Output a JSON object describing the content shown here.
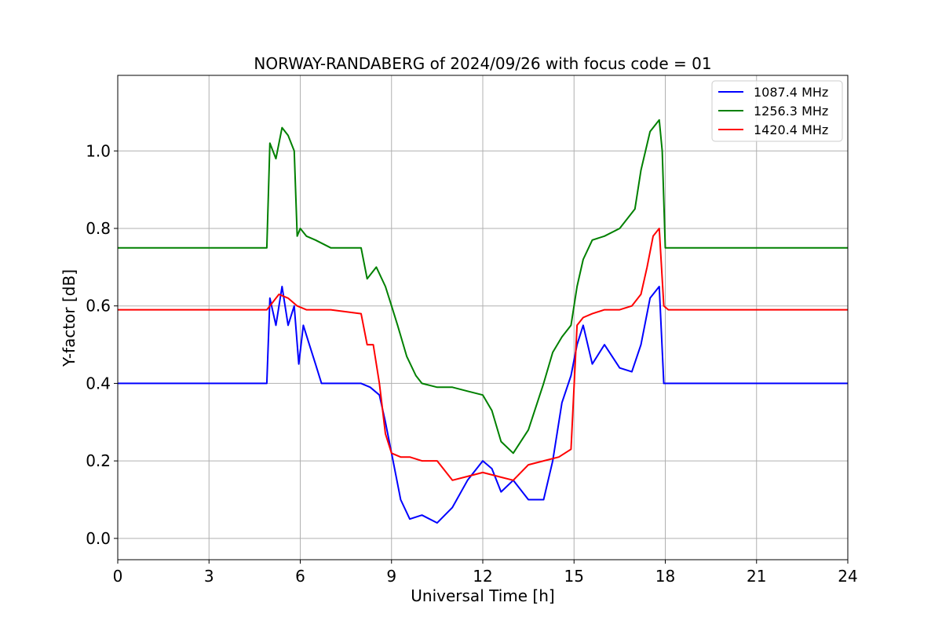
{
  "chart_data": {
    "type": "line",
    "title": "NORWAY-RANDABERG of 2024/09/26 with focus code = 01",
    "xlabel": "Universal Time [h]",
    "ylabel": "Y-factor [dB]",
    "xlim": [
      0,
      24
    ],
    "ylim": [
      -0.055,
      1.195
    ],
    "xticks": [
      0,
      3,
      6,
      9,
      12,
      15,
      18,
      21,
      24
    ],
    "xtick_labels": [
      "0",
      "3",
      "6",
      "9",
      "12",
      "15",
      "18",
      "21",
      "24"
    ],
    "yticks": [
      0.0,
      0.2,
      0.4,
      0.6,
      0.8,
      1.0
    ],
    "ytick_labels": [
      "0.0",
      "0.2",
      "0.4",
      "0.6",
      "0.8",
      "1.0"
    ],
    "grid": true,
    "legend_position": "top-right",
    "series": [
      {
        "name": "1087.4 MHz",
        "color": "#0000ff",
        "x": [
          0,
          4.9,
          5.0,
          5.2,
          5.4,
          5.6,
          5.8,
          5.95,
          6.1,
          6.3,
          6.5,
          6.7,
          7.0,
          8.0,
          8.3,
          8.6,
          8.8,
          9.0,
          9.3,
          9.6,
          10.0,
          10.5,
          11.0,
          11.5,
          12.0,
          12.3,
          12.6,
          13.0,
          13.5,
          14.0,
          14.3,
          14.6,
          14.9,
          15.1,
          15.3,
          15.6,
          16.0,
          16.5,
          16.9,
          17.2,
          17.5,
          17.8,
          17.95,
          18.1,
          19.0,
          20.0,
          20.6,
          21.0,
          22.0,
          24
        ],
        "y": [
          0.4,
          0.4,
          0.62,
          0.55,
          0.65,
          0.55,
          0.6,
          0.45,
          0.55,
          0.5,
          0.45,
          0.4,
          0.4,
          0.4,
          0.39,
          0.37,
          0.3,
          0.22,
          0.1,
          0.05,
          0.06,
          0.04,
          0.08,
          0.15,
          0.2,
          0.18,
          0.12,
          0.15,
          0.1,
          0.1,
          0.2,
          0.35,
          0.42,
          0.5,
          0.55,
          0.45,
          0.5,
          0.44,
          0.43,
          0.5,
          0.62,
          0.65,
          0.4,
          0.4,
          0.4,
          0.4,
          0.4,
          0.4,
          0.4,
          0.4
        ]
      },
      {
        "name": "1256.3 MHz",
        "color": "#008000",
        "x": [
          0,
          4.9,
          5.0,
          5.2,
          5.4,
          5.6,
          5.8,
          5.9,
          6.0,
          6.2,
          6.5,
          7.0,
          8.0,
          8.2,
          8.5,
          8.8,
          9.0,
          9.2,
          9.5,
          9.8,
          10.0,
          10.5,
          11.0,
          11.5,
          12.0,
          12.3,
          12.6,
          13.0,
          13.5,
          14.0,
          14.3,
          14.6,
          14.9,
          15.1,
          15.3,
          15.6,
          16.0,
          16.5,
          17.0,
          17.2,
          17.5,
          17.8,
          17.9,
          18.0,
          19.0,
          20.0,
          21.0,
          22.0,
          24
        ],
        "y": [
          0.75,
          0.75,
          1.02,
          0.98,
          1.06,
          1.04,
          1.0,
          0.78,
          0.8,
          0.78,
          0.77,
          0.75,
          0.75,
          0.67,
          0.7,
          0.65,
          0.6,
          0.55,
          0.47,
          0.42,
          0.4,
          0.39,
          0.39,
          0.38,
          0.37,
          0.33,
          0.25,
          0.22,
          0.28,
          0.4,
          0.48,
          0.52,
          0.55,
          0.65,
          0.72,
          0.77,
          0.78,
          0.8,
          0.85,
          0.95,
          1.05,
          1.08,
          1.0,
          0.75,
          0.75,
          0.75,
          0.75,
          0.75,
          0.75
        ]
      },
      {
        "name": "1420.4 MHz",
        "color": "#ff0000",
        "x": [
          0,
          4.9,
          5.0,
          5.3,
          5.6,
          5.9,
          6.2,
          7.0,
          8.0,
          8.2,
          8.4,
          8.6,
          8.8,
          9.0,
          9.3,
          9.6,
          10.0,
          10.5,
          11.0,
          11.5,
          12.0,
          12.5,
          13.0,
          13.5,
          14.0,
          14.5,
          14.9,
          15.1,
          15.3,
          15.6,
          16.0,
          16.5,
          16.9,
          17.2,
          17.4,
          17.6,
          17.8,
          17.95,
          18.1,
          19.0,
          20.0,
          21.0,
          22.0,
          24
        ],
        "y": [
          0.59,
          0.59,
          0.6,
          0.63,
          0.62,
          0.6,
          0.59,
          0.59,
          0.58,
          0.5,
          0.5,
          0.4,
          0.27,
          0.22,
          0.21,
          0.21,
          0.2,
          0.2,
          0.15,
          0.16,
          0.17,
          0.16,
          0.15,
          0.19,
          0.2,
          0.21,
          0.23,
          0.55,
          0.57,
          0.58,
          0.59,
          0.59,
          0.6,
          0.63,
          0.7,
          0.78,
          0.8,
          0.6,
          0.59,
          0.59,
          0.59,
          0.59,
          0.59,
          0.59
        ]
      }
    ]
  }
}
